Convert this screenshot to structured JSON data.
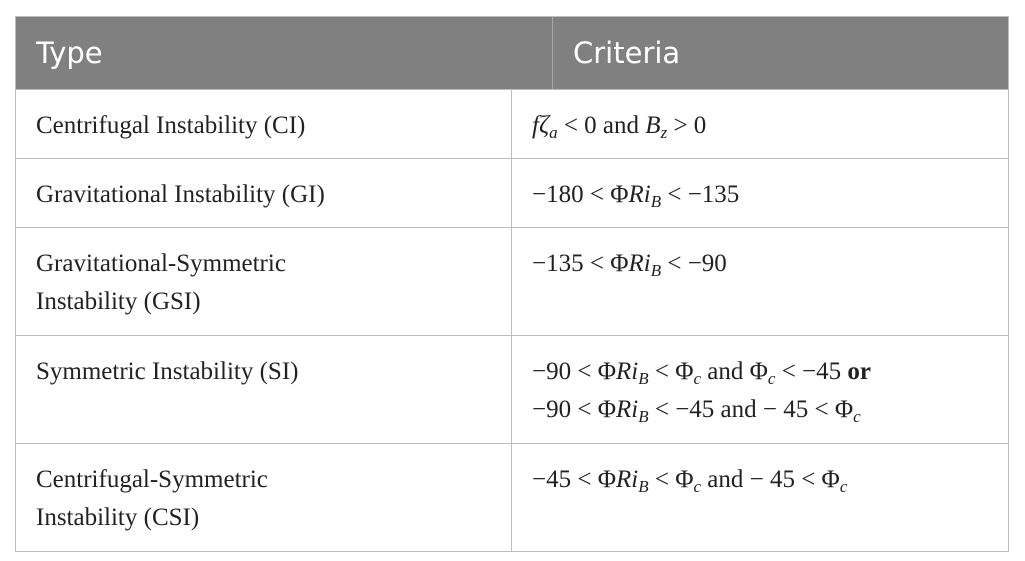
{
  "table": {
    "header": [
      "Type",
      "Criteria"
    ],
    "rows": [
      {
        "type": [
          "Centrifugal Instability (CI)"
        ],
        "criteria": [
          [
            {
              "text": "f",
              "italic": true
            },
            {
              "text": "ζ",
              "italic": true
            },
            {
              "text": "a",
              "italic": true,
              "sub": true
            },
            {
              "text": " < 0 and "
            },
            {
              "text": "B",
              "italic": true
            },
            {
              "text": "z",
              "italic": true,
              "sub": true
            },
            {
              "text": " > 0"
            }
          ]
        ]
      },
      {
        "type": [
          "Gravitational Instability (GI)"
        ],
        "criteria": [
          [
            {
              "text": "−180 < Φ"
            },
            {
              "text": "Ri",
              "italic": true
            },
            {
              "text": "B",
              "italic": true,
              "sub": true
            },
            {
              "text": " < −135"
            }
          ]
        ]
      },
      {
        "type": [
          "Gravitational-Symmetric",
          "Instability (GSI)"
        ],
        "criteria": [
          [
            {
              "text": "−135 < Φ"
            },
            {
              "text": "Ri",
              "italic": true
            },
            {
              "text": "B",
              "italic": true,
              "sub": true
            },
            {
              "text": " < −90"
            }
          ]
        ]
      },
      {
        "type": [
          "Symmetric Instability (SI)"
        ],
        "criteria": [
          [
            {
              "text": "−90 < Φ"
            },
            {
              "text": "Ri",
              "italic": true
            },
            {
              "text": "B",
              "italic": true,
              "sub": true
            },
            {
              "text": " < Φ"
            },
            {
              "text": "c",
              "italic": true,
              "sub": true
            },
            {
              "text": " and Φ"
            },
            {
              "text": "c",
              "italic": true,
              "sub": true
            },
            {
              "text": " < −45 "
            },
            {
              "text": "or",
              "bold": true
            }
          ],
          [
            {
              "text": "−90 < Φ"
            },
            {
              "text": "Ri",
              "italic": true
            },
            {
              "text": "B",
              "italic": true,
              "sub": true
            },
            {
              "text": " < −45 and − 45 < Φ"
            },
            {
              "text": "c",
              "italic": true,
              "sub": true
            }
          ]
        ]
      },
      {
        "type": [
          "Centrifugal-Symmetric",
          "Instability (CSI)"
        ],
        "criteria": [
          [
            {
              "text": "−45 < Φ"
            },
            {
              "text": "Ri",
              "italic": true
            },
            {
              "text": "B",
              "italic": true,
              "sub": true
            },
            {
              "text": " < Φ"
            },
            {
              "text": "c",
              "italic": true,
              "sub": true
            },
            {
              "text": " and − 45 < Φ"
            },
            {
              "text": "c",
              "italic": true,
              "sub": true
            }
          ]
        ]
      }
    ]
  }
}
